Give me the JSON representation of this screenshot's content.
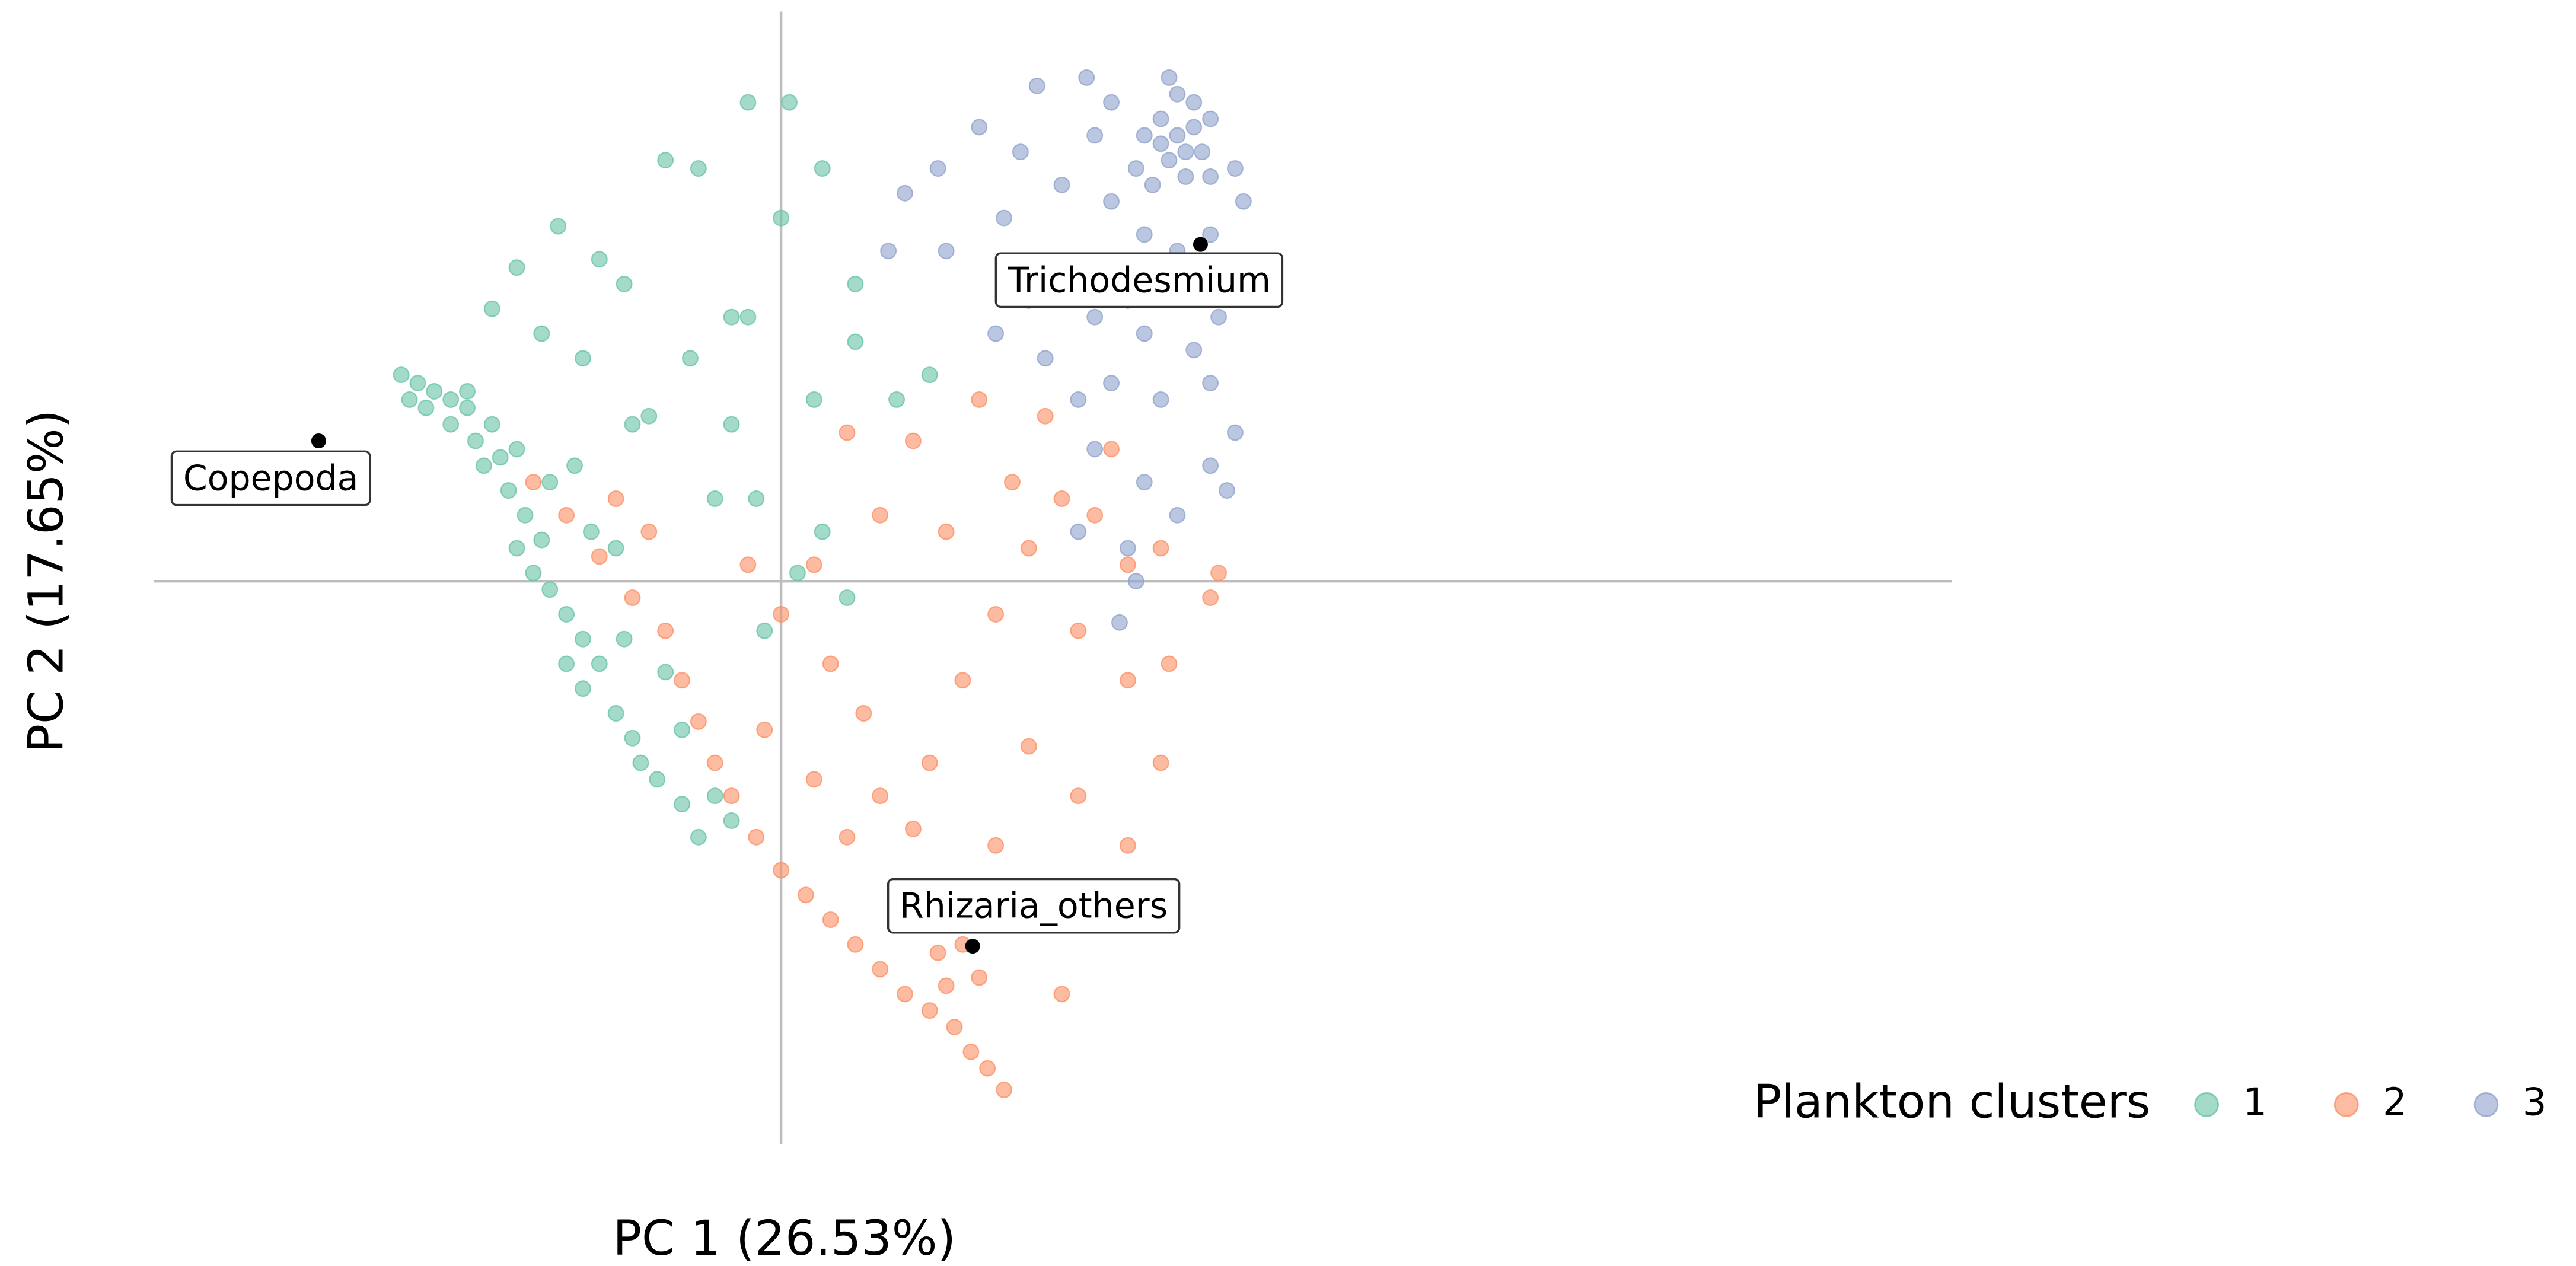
{
  "chart_data": {
    "type": "scatter",
    "x_label": "PC 1 (26.53%)",
    "y_label": "PC 2 (17.65%)",
    "legend_title": "Plankton clusters",
    "legend": "bottom-right",
    "xlim": [
      -3.8,
      7.09
    ],
    "ylim": [
      -3.41,
      3.45
    ],
    "series": [
      {
        "name": "1",
        "color": "#66c2a5",
        "x": [
          -2.3,
          -2.2,
          -2.1,
          -2.0,
          -1.9,
          -2.15,
          -2.0,
          -1.85,
          -1.8,
          -1.7,
          -1.6,
          -1.65,
          -1.55,
          -1.45,
          -1.6,
          -1.5,
          -1.4,
          -1.3,
          -1.2,
          -1.1,
          -1.3,
          -1.2,
          -1.0,
          -0.9,
          -0.85,
          -0.75,
          -0.6,
          -0.5,
          -1.75,
          -1.4,
          -1.25,
          -1.15,
          -1.0,
          -0.95,
          -0.7,
          -0.6,
          -0.4,
          -0.3,
          -1.9,
          -2.25,
          -1.6,
          -1.35,
          -1.1,
          -0.95,
          -0.7,
          -0.5,
          -0.2,
          0.05,
          0.25,
          0.0,
          -0.3,
          -0.55,
          -0.8,
          -0.3,
          0.2,
          0.45,
          0.7,
          0.9,
          -1.45,
          -1.75,
          -0.4,
          -0.15,
          0.25,
          0.4,
          -0.1,
          -1.2,
          -0.9,
          0.1,
          0.45,
          -0.2
        ],
        "y": [
          1.25,
          1.2,
          1.15,
          1.1,
          1.05,
          1.05,
          0.95,
          0.85,
          0.7,
          0.75,
          0.8,
          0.55,
          0.4,
          0.25,
          0.2,
          0.05,
          -0.05,
          -0.2,
          -0.35,
          -0.5,
          -0.5,
          -0.65,
          -0.8,
          -0.95,
          -1.1,
          -1.2,
          -1.35,
          -1.55,
          0.95,
          0.6,
          0.7,
          0.3,
          0.2,
          -0.35,
          -0.55,
          -0.9,
          -1.3,
          -1.45,
          1.15,
          1.1,
          1.9,
          2.15,
          1.95,
          1.8,
          2.55,
          2.5,
          2.9,
          2.9,
          2.5,
          2.2,
          1.6,
          1.35,
          1.0,
          0.95,
          1.1,
          1.45,
          1.1,
          1.25,
          1.5,
          1.65,
          0.5,
          0.5,
          0.3,
          -0.1,
          -0.3,
          1.35,
          0.95,
          0.05,
          1.8,
          1.6
        ]
      },
      {
        "name": "2",
        "color": "#fc8d62",
        "x": [
          -1.5,
          -1.3,
          -1.1,
          -1.0,
          -0.8,
          -0.9,
          -0.7,
          -0.6,
          -0.5,
          -0.4,
          -0.3,
          -0.15,
          0.0,
          0.15,
          0.3,
          0.45,
          0.6,
          0.75,
          0.9,
          1.0,
          1.05,
          1.15,
          1.25,
          1.35,
          0.95,
          1.1,
          1.2,
          -0.2,
          0.0,
          0.2,
          0.3,
          0.5,
          0.6,
          0.8,
          0.9,
          1.1,
          1.3,
          1.5,
          1.7,
          1.9,
          2.1,
          2.3,
          2.6,
          2.65,
          2.1,
          2.3,
          2.1,
          1.8,
          1.5,
          1.3,
          1.0,
          1.5,
          1.7,
          0.4,
          0.8,
          1.2,
          1.6,
          0.6,
          1.0,
          2.0,
          1.4,
          -0.1,
          0.2,
          0.4,
          1.8,
          2.35
        ],
        "y": [
          0.6,
          0.4,
          0.15,
          0.5,
          0.3,
          -0.1,
          -0.3,
          -0.6,
          -0.85,
          -1.1,
          -1.3,
          -1.55,
          -1.75,
          -1.9,
          -2.05,
          -2.2,
          -2.35,
          -2.5,
          -2.6,
          -2.45,
          -2.7,
          -2.85,
          -2.95,
          -3.08,
          -2.25,
          -2.2,
          -2.4,
          0.1,
          -0.2,
          0.1,
          -0.5,
          -0.8,
          -1.3,
          -1.5,
          -1.1,
          -0.6,
          -0.2,
          0.2,
          0.5,
          0.4,
          0.1,
          0.2,
          -0.1,
          0.05,
          -0.6,
          -1.1,
          -1.6,
          -1.3,
          -1.0,
          -1.6,
          -1.9,
          -2.0,
          -2.5,
          0.9,
          0.85,
          1.1,
          1.0,
          0.4,
          0.3,
          0.8,
          0.6,
          -0.9,
          -1.2,
          -1.55,
          -0.3,
          -0.5
        ]
      },
      {
        "name": "3",
        "color": "#8da0cb",
        "x": [
          2.3,
          2.4,
          2.5,
          2.45,
          2.35,
          2.55,
          2.6,
          2.5,
          2.4,
          2.3,
          2.2,
          2.15,
          2.45,
          2.6,
          2.25,
          1.85,
          1.55,
          1.2,
          0.95,
          0.75,
          1.0,
          0.65,
          1.35,
          1.45,
          1.7,
          1.9,
          2.0,
          2.2,
          2.4,
          2.6,
          2.7,
          2.65,
          2.5,
          2.2,
          1.9,
          1.5,
          1.3,
          2.0,
          2.3,
          2.6,
          2.75,
          2.6,
          2.4,
          2.2,
          1.9,
          1.8,
          2.1,
          2.7,
          2.1,
          1.7,
          2.75,
          2.8,
          2.0,
          2.35,
          1.8,
          2.15,
          2.05,
          1.6
        ],
        "y": [
          2.8,
          2.7,
          2.75,
          2.6,
          2.55,
          2.6,
          2.8,
          2.9,
          2.95,
          2.65,
          2.7,
          2.5,
          2.45,
          2.45,
          2.4,
          3.05,
          3.0,
          2.75,
          2.5,
          2.35,
          2.0,
          2.0,
          2.2,
          2.6,
          2.4,
          2.7,
          2.3,
          2.1,
          2.0,
          2.1,
          1.9,
          1.6,
          1.4,
          1.5,
          1.6,
          1.7,
          1.5,
          1.2,
          1.1,
          1.2,
          0.9,
          0.7,
          0.4,
          0.6,
          0.8,
          0.3,
          0.2,
          0.55,
          1.7,
          1.9,
          2.5,
          2.3,
          2.9,
          3.05,
          1.1,
          0.0,
          -0.25,
          1.35
        ]
      }
    ],
    "annotations": [
      {
        "text": "Copepoda",
        "x": -2.8,
        "y": 0.85
      },
      {
        "text": "Trichodesmium",
        "x": 2.54,
        "y": 2.04
      },
      {
        "text": "Rhizaria_others",
        "x": 1.16,
        "y": -2.21
      }
    ]
  }
}
